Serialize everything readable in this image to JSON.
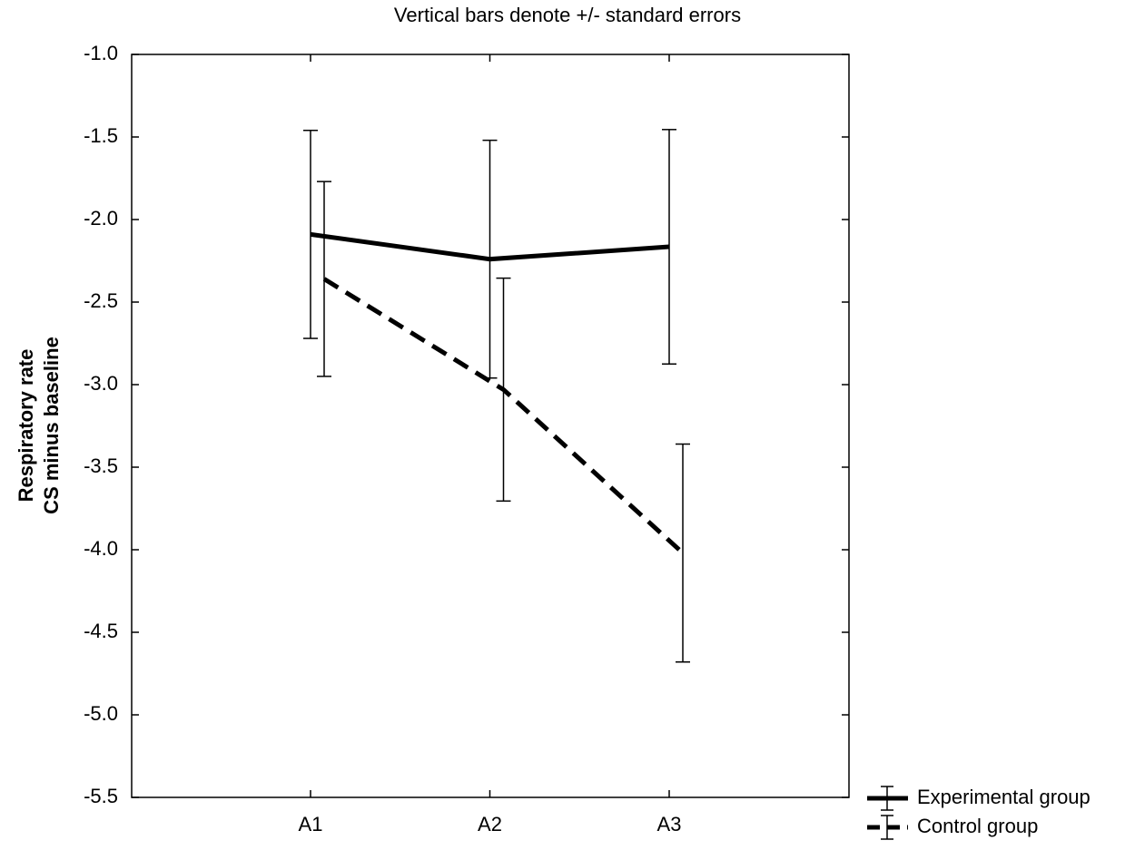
{
  "chart_data": {
    "type": "line",
    "title": "Vertical bars denote +/- standard errors",
    "ylabel": [
      "Respiratory rate",
      "CS minus baseline"
    ],
    "categories": [
      "A1",
      "A2",
      "A3"
    ],
    "series": [
      {
        "name": "Experimental group",
        "color": "#000000",
        "linestyle": "solid",
        "values": [
          -2.09,
          -2.24,
          -2.165
        ],
        "errors": [
          0.63,
          0.72,
          0.71
        ]
      },
      {
        "name": "Control group",
        "color": "#000000",
        "linestyle": "dashed",
        "values": [
          -2.36,
          -3.03,
          -4.02
        ],
        "errors": [
          0.59,
          0.675,
          0.66
        ]
      }
    ],
    "ylim": [
      -5.5,
      -1.0
    ],
    "yticks": [
      {
        "value": -5.5,
        "label": "-5.5"
      },
      {
        "value": -5,
        "label": "-5.0"
      },
      {
        "value": -4.5,
        "label": "-4.5"
      },
      {
        "value": -4,
        "label": "-4.0"
      },
      {
        "value": -3.5,
        "label": "-3.5"
      },
      {
        "value": -3,
        "label": "-3.0"
      },
      {
        "value": -2.5,
        "label": "-2.5"
      },
      {
        "value": -2,
        "label": "-2.0"
      },
      {
        "value": -1.5,
        "label": "-1.5"
      },
      {
        "value": -1,
        "label": "-1.0"
      }
    ],
    "legend": "lower right outside",
    "grid": false
  }
}
